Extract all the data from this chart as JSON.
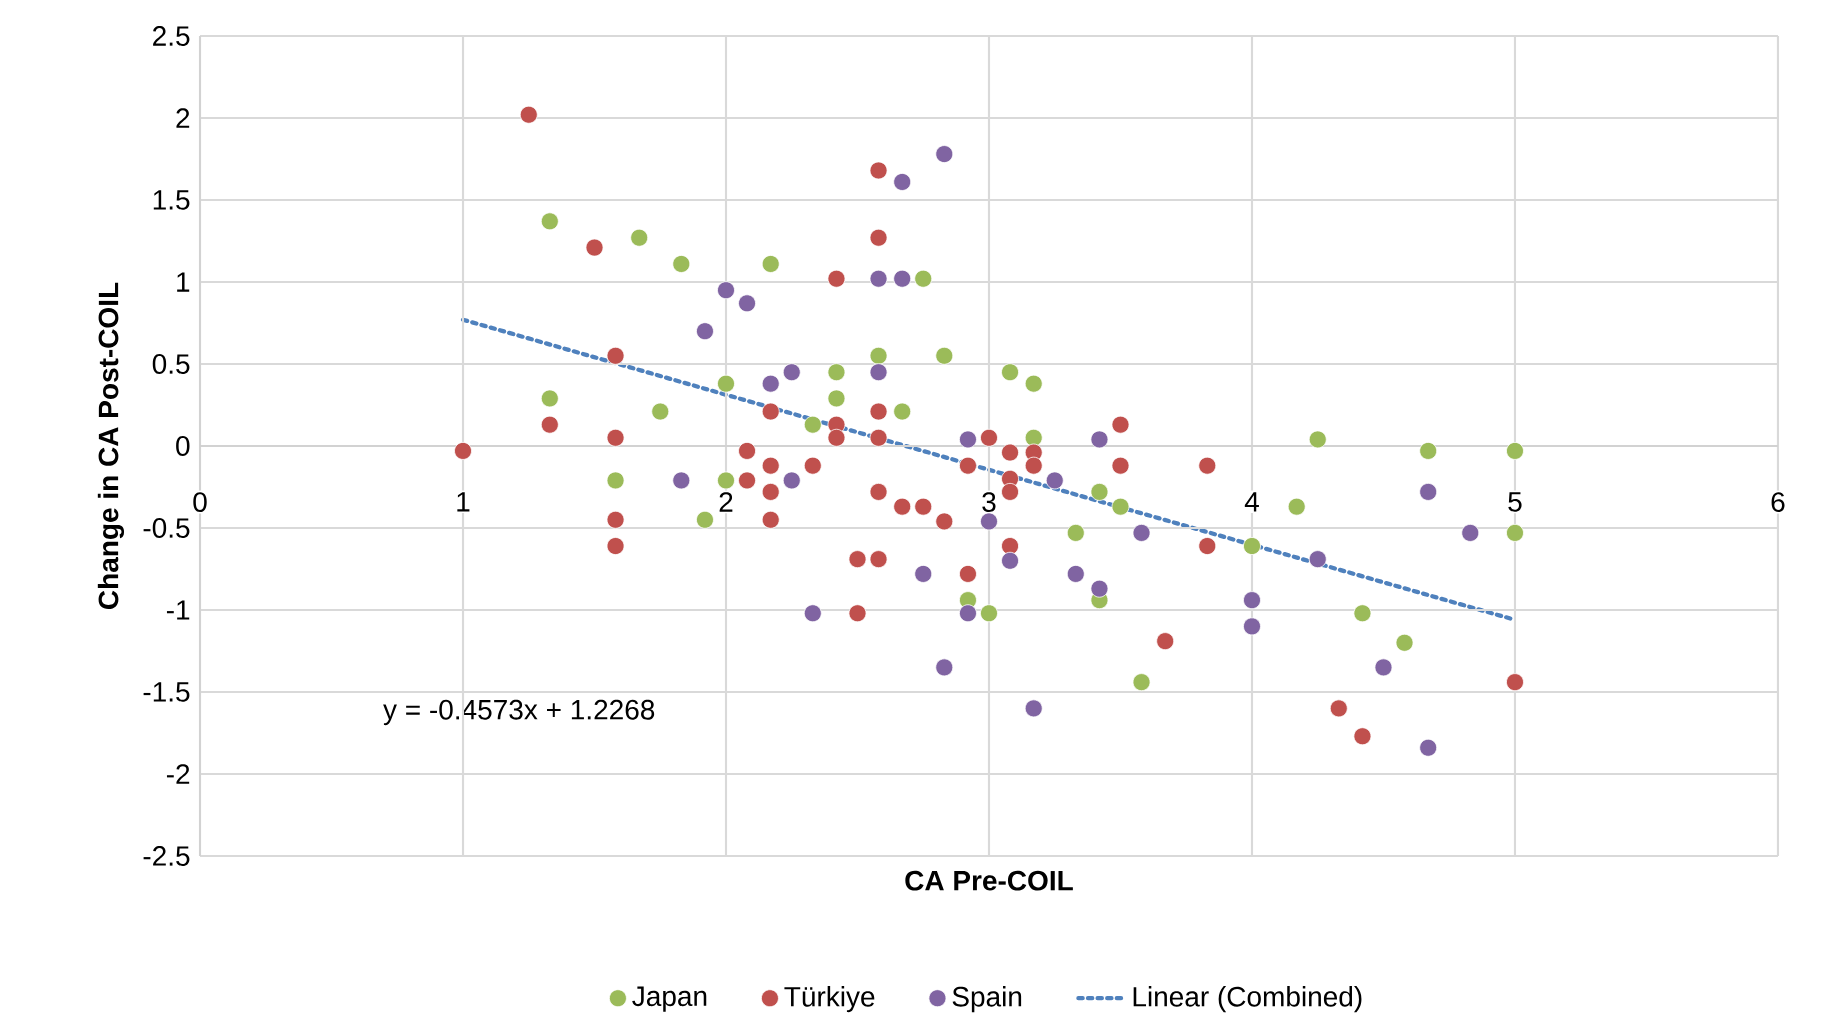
{
  "chart_data": {
    "type": "scatter",
    "xlabel": "CA Pre-COIL",
    "ylabel": "Change in CA Post-COIL",
    "xlim": [
      0,
      6
    ],
    "xticks": [
      0,
      1,
      2,
      3,
      4,
      5,
      6
    ],
    "ylim": [
      -2.5,
      2.5
    ],
    "yticks": [
      -2.5,
      -2,
      -1.5,
      -1,
      -0.5,
      0,
      0.5,
      1,
      1.5,
      2,
      2.5
    ],
    "grid": true,
    "legend": "bottom",
    "marker": "circle",
    "annotations": [
      "y = -0.4573x + 1.2268"
    ],
    "series": [
      {
        "name": "Japan",
        "color": "#9bbb59",
        "x": [
          1.33,
          1.33,
          1.67,
          1.83,
          2.17,
          1.75,
          2.0,
          2.33,
          1.58,
          2.0,
          1.92,
          2.42,
          2.42,
          2.58,
          2.83,
          2.75,
          2.67,
          3.08,
          3.17,
          3.17,
          3.42,
          3.5,
          3.33,
          2.92,
          3.0,
          3.42,
          3.58,
          4.25,
          4.17,
          4.0,
          4.42,
          4.58,
          4.67,
          5.0,
          5.0
        ],
        "values": [
          1.37,
          0.29,
          1.27,
          1.11,
          1.11,
          0.21,
          0.38,
          0.13,
          -0.21,
          -0.21,
          -0.45,
          0.45,
          0.29,
          0.55,
          0.55,
          1.02,
          0.21,
          0.45,
          0.38,
          0.05,
          -0.28,
          -0.37,
          -0.53,
          -0.94,
          -1.02,
          -0.94,
          -1.44,
          0.04,
          -0.37,
          -0.61,
          -1.02,
          -1.2,
          -0.03,
          -0.03,
          -0.53
        ]
      },
      {
        "name": "Türkiye",
        "color": "#c0504d",
        "x": [
          1.0,
          1.25,
          1.5,
          1.58,
          1.33,
          1.58,
          1.58,
          1.58,
          2.17,
          2.08,
          2.08,
          2.17,
          2.17,
          2.17,
          2.33,
          2.42,
          2.42,
          2.42,
          2.58,
          2.58,
          2.58,
          2.58,
          3.0,
          2.92,
          3.08,
          3.17,
          3.17,
          3.08,
          3.08,
          2.58,
          2.67,
          2.75,
          2.83,
          2.5,
          2.58,
          2.92,
          2.5,
          3.08,
          3.5,
          3.5,
          3.83,
          3.83,
          3.67,
          4.33,
          4.42,
          5.0
        ],
        "values": [
          -0.03,
          2.02,
          1.21,
          0.55,
          0.13,
          0.05,
          -0.45,
          -0.61,
          0.21,
          -0.03,
          -0.21,
          -0.12,
          -0.28,
          -0.45,
          -0.12,
          1.02,
          0.13,
          0.05,
          1.68,
          1.27,
          0.21,
          0.05,
          0.05,
          -0.12,
          -0.04,
          -0.04,
          -0.12,
          -0.2,
          -0.28,
          -0.28,
          -0.37,
          -0.37,
          -0.46,
          -0.69,
          -0.69,
          -0.78,
          -1.02,
          -0.61,
          0.13,
          -0.12,
          -0.12,
          -0.61,
          -1.19,
          -1.6,
          -1.77,
          -1.44
        ]
      },
      {
        "name": "Spain",
        "color": "#8064a2",
        "x": [
          2.0,
          2.08,
          1.92,
          1.83,
          2.17,
          2.25,
          2.25,
          2.33,
          2.83,
          2.67,
          2.58,
          2.67,
          2.58,
          2.92,
          3.0,
          2.75,
          2.92,
          2.83,
          3.08,
          3.17,
          3.25,
          3.33,
          3.42,
          3.42,
          3.58,
          4.0,
          4.0,
          4.25,
          4.5,
          4.67,
          4.67,
          4.83
        ],
        "values": [
          0.95,
          0.87,
          0.7,
          -0.21,
          0.38,
          0.45,
          -0.21,
          -1.02,
          1.78,
          1.61,
          1.02,
          1.02,
          0.45,
          0.04,
          -0.46,
          -0.78,
          -1.02,
          -1.35,
          -0.7,
          -1.6,
          -0.21,
          -0.78,
          -0.87,
          0.04,
          -0.53,
          -0.94,
          -1.1,
          -0.69,
          -1.35,
          -0.28,
          -1.84,
          -0.53
        ]
      },
      {
        "name": "Linear (Combined)",
        "type": "line",
        "color": "#4f81bd",
        "line_style": "dotted",
        "marker": "none",
        "x": [
          1,
          5
        ],
        "values": [
          0.77,
          -1.06
        ]
      }
    ]
  }
}
